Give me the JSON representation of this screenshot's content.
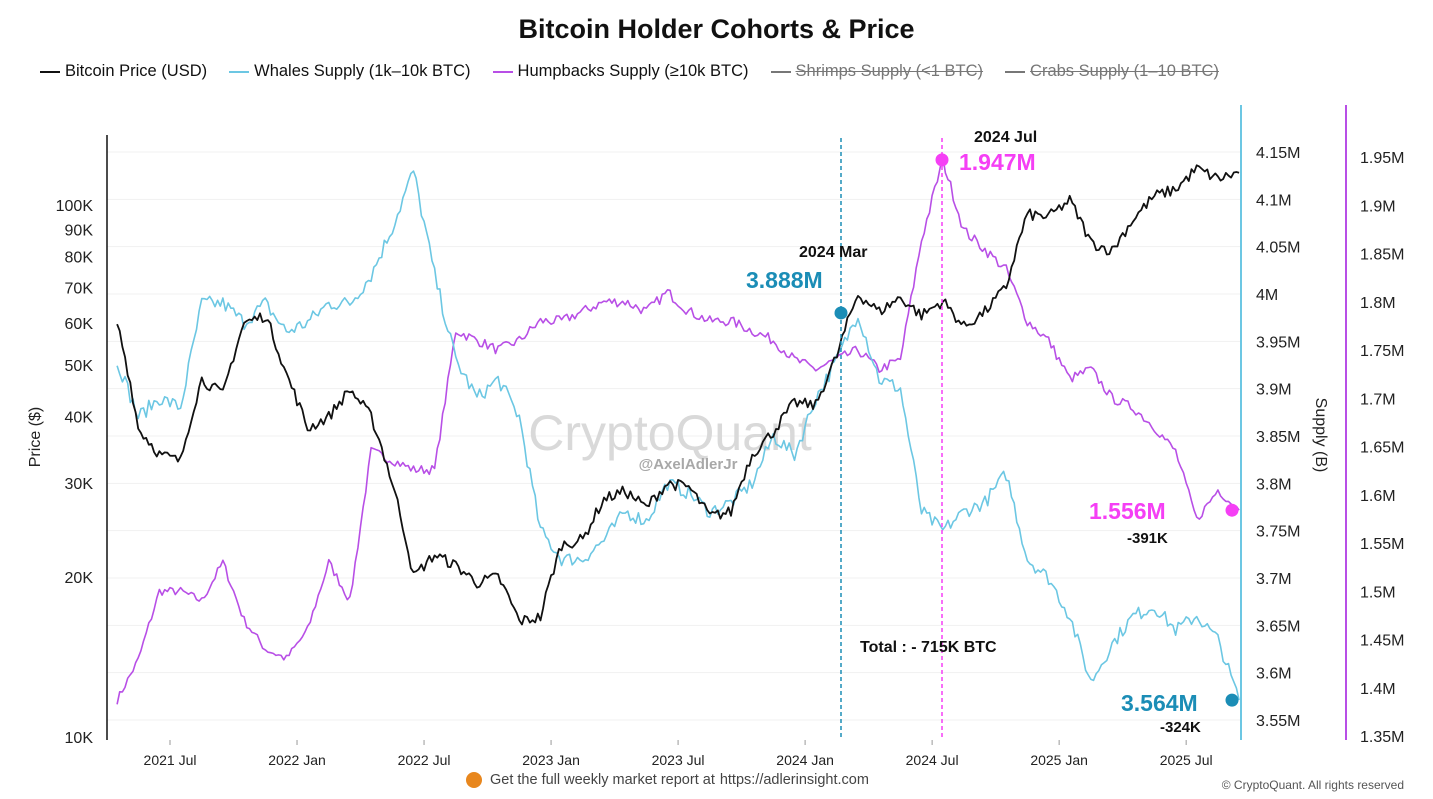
{
  "chart_data": {
    "type": "line",
    "title": "Bitcoin Holder Cohorts & Price",
    "legend_position": "top-left",
    "grid": true,
    "x_ticks": [
      "2021 Jul",
      "2022 Jan",
      "2022 Jul",
      "2023 Jan",
      "2023 Jul",
      "2024 Jan",
      "2024 Jul",
      "2025 Jan",
      "2025 Jul"
    ],
    "x": [
      "2021-04",
      "2021-05",
      "2021-06",
      "2021-07",
      "2021-08",
      "2021-09",
      "2021-10",
      "2021-11",
      "2021-12",
      "2022-01",
      "2022-02",
      "2022-03",
      "2022-04",
      "2022-05",
      "2022-06",
      "2022-07",
      "2022-08",
      "2022-09",
      "2022-10",
      "2022-11",
      "2022-12",
      "2023-01",
      "2023-02",
      "2023-03",
      "2023-04",
      "2023-05",
      "2023-06",
      "2023-07",
      "2023-08",
      "2023-09",
      "2023-10",
      "2023-11",
      "2023-12",
      "2024-01",
      "2024-02",
      "2024-03",
      "2024-04",
      "2024-05",
      "2024-06",
      "2024-07",
      "2024-08",
      "2024-09",
      "2024-10",
      "2024-11",
      "2024-12",
      "2025-01",
      "2025-02",
      "2025-03",
      "2025-04",
      "2025-05",
      "2025-06",
      "2025-07",
      "2025-08",
      "2025-09"
    ],
    "series": [
      {
        "name": "Bitcoin Price (USD)",
        "color": "#111111",
        "axis": "left",
        "visible": true,
        "values": [
          60000,
          38000,
          34000,
          33000,
          47000,
          44000,
          60000,
          62000,
          48000,
          38000,
          40000,
          45000,
          40000,
          30000,
          20000,
          22000,
          21000,
          19500,
          20000,
          16500,
          16800,
          23000,
          23500,
          28000,
          29000,
          27000,
          30000,
          29500,
          26000,
          26500,
          34000,
          37500,
          42500,
          42000,
          52000,
          68000,
          63000,
          67000,
          62000,
          66000,
          59000,
          63000,
          70000,
          96000,
          95000,
          102000,
          85000,
          82000,
          94000,
          104000,
          107000,
          117000,
          112000,
          115000
        ]
      },
      {
        "name": "Whales Supply (1k–10k BTC)",
        "color": "#6cc7e3",
        "axis": "right1",
        "visible": true,
        "values": [
          3.93,
          3.87,
          3.89,
          3.88,
          3.99,
          3.99,
          3.97,
          3.99,
          3.96,
          3.97,
          3.99,
          3.99,
          4.02,
          4.07,
          4.13,
          4.02,
          3.93,
          3.89,
          3.91,
          3.87,
          3.75,
          3.72,
          3.72,
          3.74,
          3.77,
          3.76,
          3.8,
          3.79,
          3.77,
          3.78,
          3.8,
          3.85,
          3.83,
          3.89,
          3.93,
          3.98,
          3.91,
          3.9,
          3.77,
          3.75,
          3.77,
          3.78,
          3.81,
          3.72,
          3.7,
          3.66,
          3.59,
          3.63,
          3.66,
          3.67,
          3.645,
          3.66,
          3.635,
          3.571
        ]
      },
      {
        "name": "Humpbacks Supply (≥10k BTC)",
        "color": "#b84fe6",
        "axis": "right2",
        "visible": true,
        "values": [
          1.387,
          1.429,
          1.5,
          1.5,
          1.49,
          1.53,
          1.47,
          1.44,
          1.43,
          1.46,
          1.53,
          1.49,
          1.645,
          1.636,
          1.626,
          1.626,
          1.77,
          1.76,
          1.75,
          1.76,
          1.78,
          1.78,
          1.79,
          1.8,
          1.8,
          1.79,
          1.81,
          1.79,
          1.78,
          1.78,
          1.77,
          1.76,
          1.74,
          1.73,
          1.74,
          1.75,
          1.73,
          1.74,
          1.864,
          1.947,
          1.874,
          1.854,
          1.833,
          1.78,
          1.76,
          1.72,
          1.73,
          1.7,
          1.69,
          1.67,
          1.645,
          1.574,
          1.605,
          1.584
        ]
      },
      {
        "name": "Shrimps Supply (<1 BTC)",
        "color": "#777777",
        "visible": false
      },
      {
        "name": "Crabs Supply (1–10 BTC)",
        "color": "#777777",
        "visible": false
      }
    ],
    "y_left": {
      "label": "Price ($)",
      "scale": "log",
      "range": [
        10000,
        160000
      ],
      "ticks": [
        "100K",
        "90K",
        "80K",
        "70K",
        "60K",
        "50K",
        "40K",
        "30K",
        "20K",
        "10K"
      ],
      "tick_values": [
        100000,
        90000,
        80000,
        70000,
        60000,
        50000,
        40000,
        30000,
        20000,
        10000
      ]
    },
    "y_right1": {
      "label": "Supply (B)",
      "range": [
        3.536,
        4.168
      ],
      "ticks": [
        "4.15M",
        "4.1M",
        "4.05M",
        "4M",
        "3.95M",
        "3.9M",
        "3.85M",
        "3.8M",
        "3.75M",
        "3.7M",
        "3.65M",
        "3.6M",
        "3.55M"
      ],
      "tick_values": [
        4.15,
        4.1,
        4.05,
        4.0,
        3.95,
        3.9,
        3.85,
        3.8,
        3.75,
        3.7,
        3.65,
        3.6,
        3.55
      ]
    },
    "y_right2": {
      "range": [
        1.35,
        1.97
      ],
      "ticks": [
        "1.95M",
        "1.9M",
        "1.85M",
        "1.8M",
        "1.75M",
        "1.7M",
        "1.65M",
        "1.6M",
        "1.55M",
        "1.5M",
        "1.45M",
        "1.4M",
        "1.35M"
      ],
      "tick_values": [
        1.95,
        1.9,
        1.85,
        1.8,
        1.75,
        1.7,
        1.65,
        1.6,
        1.55,
        1.5,
        1.45,
        1.4,
        1.35
      ]
    },
    "annotations": {
      "mar_date": "2024 Mar",
      "mar_value": "3.888M",
      "jul_date": "2024 Jul",
      "jul_value": "1.947M",
      "hump_end_value": "1.556M",
      "hump_end_change": "-391K",
      "whale_end_value": "3.564M",
      "whale_end_change": "-324K",
      "total": "Total : - 715K BTC",
      "blue_color": "#1b8db6",
      "magenta_color": "#f53ff5"
    }
  },
  "watermark": {
    "brand": "CryptoQuant",
    "handle": "@AxelAdlerJr"
  },
  "footer": {
    "text": "Get the full weekly market report at",
    "link": "https://adlerinsight.com",
    "copyright": "© CryptoQuant. All rights reserved"
  }
}
